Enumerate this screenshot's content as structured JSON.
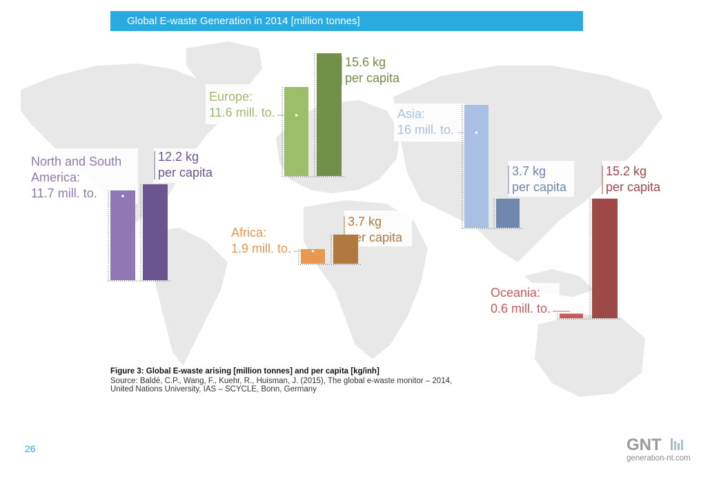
{
  "header": {
    "title": "Global E-waste Generation in 2014 [million tonnes]"
  },
  "caption": {
    "figure": "Figure 3: Global E-waste arising [million tonnes] and per capita [kg/inh]",
    "source_line1": "Source: Baldé, C.P., Wang, F., Kuehr, R., Huisman, J. (2015), The global e-waste monitor – 2014,",
    "source_line2": "United Nations University, IAS – SCYCLE, Bonn, Germany"
  },
  "page_number": "26",
  "logo": {
    "mark": "GNT",
    "url": "generation-nt.com"
  },
  "chart_data": {
    "type": "bar",
    "title": "Global E-waste Generation in 2014 [million tonnes]",
    "series_names": [
      "million tonnes",
      "kg per capita"
    ],
    "regions": [
      {
        "name": "North and South America",
        "total": 11.7,
        "per_capita": 12.2,
        "total_label": [
          "North and South",
          "America:",
          "11.7 mill. to."
        ],
        "per_capita_label": [
          "12.2 kg",
          "per capita"
        ],
        "colors": [
          "#8f78b3",
          "#6b5590"
        ]
      },
      {
        "name": "Europe",
        "total": 11.6,
        "per_capita": 15.6,
        "total_label": [
          "Europe:",
          "11.6 mill. to."
        ],
        "per_capita_label": [
          "15.6 kg",
          "per capita"
        ],
        "colors": [
          "#9cbd6a",
          "#728f47"
        ]
      },
      {
        "name": "Africa",
        "total": 1.9,
        "per_capita": 3.7,
        "total_label": [
          "Africa:",
          "1.9 mill. to."
        ],
        "per_capita_label": [
          "3.7 kg",
          "per capita"
        ],
        "colors": [
          "#e8984f",
          "#b2793e"
        ]
      },
      {
        "name": "Asia",
        "total": 16,
        "per_capita": 3.7,
        "total_label": [
          "Asia:",
          "16 mill. to."
        ],
        "per_capita_label": [
          "3.7 kg",
          "per capita"
        ],
        "colors": [
          "#a9bfe3",
          "#6f86ad"
        ]
      },
      {
        "name": "Oceania",
        "total": 0.6,
        "per_capita": 15.2,
        "total_label": [
          "Oceania:",
          "0.6 mill. to."
        ],
        "per_capita_label": [
          "15.2 kg",
          "per capita"
        ],
        "colors": [
          "#c85a5a",
          "#9e4848"
        ]
      }
    ]
  }
}
